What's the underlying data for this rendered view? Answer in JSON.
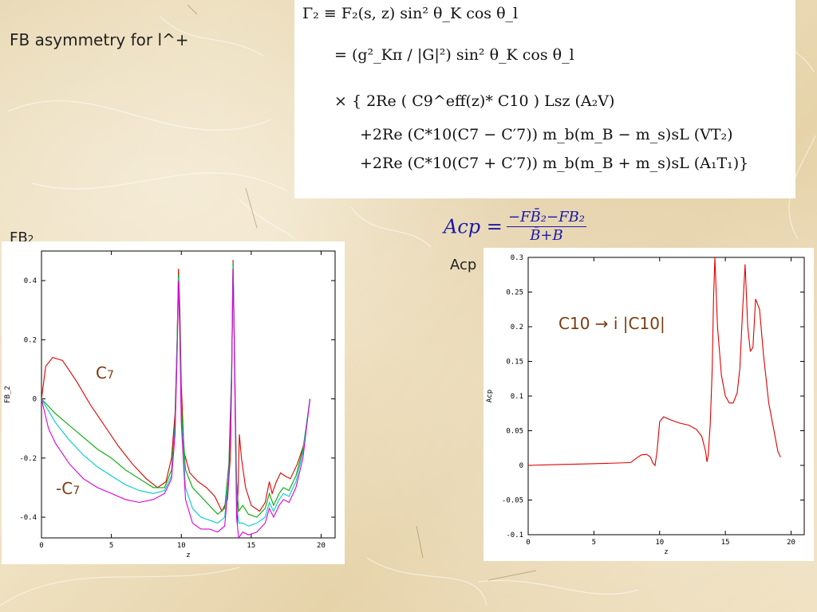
{
  "slide": {
    "title": "FB asymmetry for  l^+",
    "fb2_label": "FB",
    "fb2_sub": "2",
    "acp_label": "Acp"
  },
  "formula": {
    "lines": [
      "Γ₂  ≡  F₂(s, z) sin² θ_K cos θ_l",
      "=  (g²_Kπ / |G|²) sin² θ_K cos θ_l",
      "×  { 2Re ( C9^eff(z)* C10 ) Lsz (A₂V)",
      "+2Re (C*10(C7 − C′7)) m_b(m_B − m_s)sL (VT₂)",
      "+2Re (C*10(C7 + C′7)) m_b(m_B + m_s)sL (A₁T₁)}"
    ]
  },
  "acp_formula": {
    "lhs": "Acp =",
    "numerator": "−FB̄₂−FB₂",
    "denominator": "B̄+B"
  },
  "annotations": {
    "c7_base": "C",
    "c7_sub": "7",
    "minus_c7_base": "-C",
    "minus_c7_sub": "7",
    "c10_text": "C10 → i |C10|"
  },
  "chart_data": [
    {
      "type": "line",
      "xlabel": "z",
      "ylabel": "FB_2",
      "xlim": [
        0,
        21
      ],
      "ylim": [
        -0.47,
        0.5
      ],
      "xticks": [
        0,
        5,
        10,
        15,
        20
      ],
      "yticks": [
        -0.4,
        -0.2,
        0,
        0.2,
        0.4
      ],
      "ytick_labels": [
        "-0.4",
        "-0.2",
        "0",
        "0.2",
        "0.4"
      ],
      "grid": false,
      "series": [
        {
          "color": "#e00000",
          "x": [
            0,
            0.3,
            0.8,
            1.5,
            2.5,
            3.5,
            4.5,
            5.5,
            6.5,
            7.5,
            8.3,
            8.9,
            9.3,
            9.55,
            9.7,
            9.8,
            9.9,
            10.0,
            10.2,
            10.6,
            11.2,
            11.8,
            12.4,
            12.9,
            13.3,
            13.5,
            13.6,
            13.7,
            13.8,
            13.9,
            14.0,
            14.15,
            14.3,
            14.6,
            15.0,
            15.6,
            16.0,
            16.3,
            16.5,
            16.8,
            17.1,
            17.4,
            17.8,
            18.3,
            18.8,
            19.2
          ],
          "y": [
            0.0,
            0.11,
            0.14,
            0.13,
            0.06,
            -0.02,
            -0.09,
            -0.16,
            -0.22,
            -0.27,
            -0.3,
            -0.28,
            -0.2,
            -0.05,
            0.2,
            0.44,
            0.3,
            0.05,
            -0.18,
            -0.25,
            -0.28,
            -0.3,
            -0.33,
            -0.38,
            -0.34,
            -0.2,
            0.05,
            0.47,
            0.15,
            -0.2,
            -0.42,
            -0.12,
            -0.2,
            -0.3,
            -0.36,
            -0.38,
            -0.35,
            -0.28,
            -0.32,
            -0.28,
            -0.25,
            -0.26,
            -0.27,
            -0.22,
            -0.15,
            0.0
          ]
        },
        {
          "color": "#00aa00",
          "x": [
            0,
            1,
            2,
            3,
            4,
            5,
            6,
            7,
            8,
            8.8,
            9.3,
            9.55,
            9.7,
            9.8,
            9.9,
            10.0,
            10.3,
            10.8,
            11.4,
            12.0,
            12.6,
            13.1,
            13.4,
            13.6,
            13.7,
            13.8,
            13.95,
            14.1,
            14.4,
            14.8,
            15.4,
            16.0,
            16.3,
            16.6,
            17.0,
            17.3,
            17.7,
            18.2,
            18.7,
            19.2
          ],
          "y": [
            0.0,
            -0.05,
            -0.09,
            -0.13,
            -0.17,
            -0.2,
            -0.24,
            -0.27,
            -0.3,
            -0.3,
            -0.24,
            -0.08,
            0.2,
            0.42,
            0.25,
            -0.02,
            -0.24,
            -0.3,
            -0.33,
            -0.36,
            -0.39,
            -0.37,
            -0.22,
            0.1,
            0.46,
            0.2,
            -0.28,
            -0.38,
            -0.36,
            -0.39,
            -0.4,
            -0.37,
            -0.32,
            -0.36,
            -0.32,
            -0.3,
            -0.31,
            -0.26,
            -0.17,
            0.0
          ]
        },
        {
          "color": "#00cccc",
          "x": [
            0,
            1,
            2,
            3,
            4,
            5,
            6,
            7,
            8,
            8.8,
            9.3,
            9.55,
            9.7,
            9.8,
            9.9,
            10.0,
            10.3,
            10.8,
            11.4,
            12.0,
            12.6,
            13.1,
            13.4,
            13.6,
            13.7,
            13.8,
            13.95,
            14.1,
            14.4,
            14.8,
            15.4,
            16.0,
            16.3,
            16.6,
            17.0,
            17.3,
            17.7,
            18.2,
            18.7,
            19.2
          ],
          "y": [
            0.0,
            -0.08,
            -0.14,
            -0.19,
            -0.23,
            -0.26,
            -0.29,
            -0.31,
            -0.32,
            -0.31,
            -0.26,
            -0.1,
            0.18,
            0.41,
            0.22,
            -0.06,
            -0.3,
            -0.37,
            -0.4,
            -0.41,
            -0.42,
            -0.4,
            -0.25,
            0.08,
            0.45,
            0.18,
            -0.35,
            -0.42,
            -0.42,
            -0.43,
            -0.42,
            -0.4,
            -0.35,
            -0.38,
            -0.34,
            -0.32,
            -0.33,
            -0.28,
            -0.18,
            0.0
          ]
        },
        {
          "color": "#dd00dd",
          "x": [
            0,
            0.5,
            1,
            2,
            3,
            4,
            5,
            6,
            7,
            8,
            8.8,
            9.3,
            9.55,
            9.7,
            9.8,
            9.9,
            10.0,
            10.3,
            10.8,
            11.4,
            12.0,
            12.6,
            13.1,
            13.4,
            13.6,
            13.7,
            13.8,
            13.95,
            14.1,
            14.4,
            14.8,
            15.4,
            16.0,
            16.3,
            16.6,
            17.0,
            17.3,
            17.7,
            18.2,
            18.7,
            19.2
          ],
          "y": [
            0.0,
            -0.1,
            -0.15,
            -0.22,
            -0.27,
            -0.3,
            -0.32,
            -0.34,
            -0.35,
            -0.34,
            -0.32,
            -0.27,
            -0.12,
            0.15,
            0.4,
            0.2,
            -0.08,
            -0.34,
            -0.42,
            -0.44,
            -0.44,
            -0.45,
            -0.43,
            -0.27,
            0.06,
            0.44,
            0.16,
            -0.4,
            -0.47,
            -0.45,
            -0.46,
            -0.45,
            -0.42,
            -0.37,
            -0.4,
            -0.36,
            -0.34,
            -0.35,
            -0.3,
            -0.2,
            0.0
          ]
        }
      ]
    },
    {
      "type": "line",
      "xlabel": "z",
      "ylabel": "Acp",
      "xlim": [
        0,
        21
      ],
      "ylim": [
        -0.1,
        0.3
      ],
      "xticks": [
        0,
        5,
        10,
        15,
        20
      ],
      "yticks": [
        -0.1,
        -0.05,
        0,
        0.05,
        0.1,
        0.15,
        0.2,
        0.25,
        0.3
      ],
      "ytick_labels": [
        "-0.1",
        "-0.05",
        "0",
        "0.05",
        "0.1",
        "0.15",
        "0.2",
        "0.25",
        "0.3"
      ],
      "grid": false,
      "series": [
        {
          "color": "#e00000",
          "x": [
            0,
            2,
            4,
            6,
            7.8,
            8.2,
            8.6,
            9.0,
            9.3,
            9.5,
            9.65,
            9.8,
            10.0,
            10.3,
            10.8,
            11.5,
            12.2,
            12.8,
            13.2,
            13.5,
            13.6,
            13.7,
            13.85,
            14.0,
            14.1,
            14.2,
            14.4,
            14.7,
            15.0,
            15.3,
            15.6,
            15.9,
            16.1,
            16.3,
            16.5,
            16.7,
            16.9,
            17.1,
            17.3,
            17.6,
            17.9,
            18.3,
            18.7,
            19.0,
            19.2
          ],
          "y": [
            0.0,
            0.001,
            0.002,
            0.003,
            0.004,
            0.01,
            0.015,
            0.016,
            0.012,
            0.003,
            0.0,
            0.02,
            0.063,
            0.07,
            0.066,
            0.061,
            0.058,
            0.052,
            0.042,
            0.02,
            0.005,
            0.015,
            0.06,
            0.14,
            0.24,
            0.3,
            0.2,
            0.13,
            0.1,
            0.09,
            0.09,
            0.105,
            0.14,
            0.22,
            0.29,
            0.2,
            0.165,
            0.17,
            0.24,
            0.225,
            0.16,
            0.09,
            0.05,
            0.02,
            0.012
          ]
        }
      ]
    }
  ]
}
